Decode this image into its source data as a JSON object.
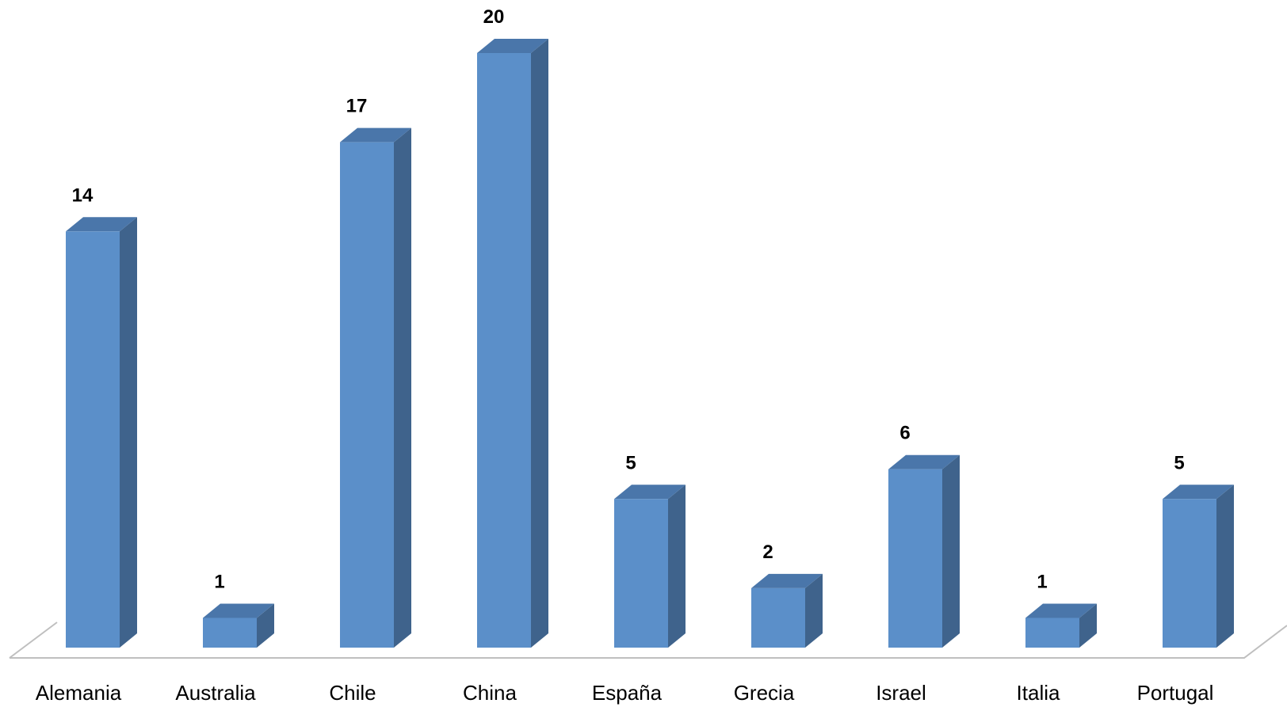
{
  "chart_data": {
    "type": "bar",
    "style": "3d-column",
    "title": "",
    "xlabel": "",
    "ylabel": "",
    "categories": [
      "Alemania",
      "Australia",
      "Chile",
      "China",
      "España",
      "Grecia",
      "Israel",
      "Italia",
      "Portugal"
    ],
    "series": [
      {
        "values": [
          14,
          1,
          17,
          20,
          5,
          2,
          6,
          1,
          5
        ]
      }
    ],
    "ylim": [
      0,
      20
    ],
    "grid": false,
    "legend": "none",
    "data_labels": true,
    "colors": {
      "front": "#5b8fc9",
      "side": "#3f638c",
      "top": "#4a76aa",
      "floor_line": "#bfbfbf"
    }
  }
}
